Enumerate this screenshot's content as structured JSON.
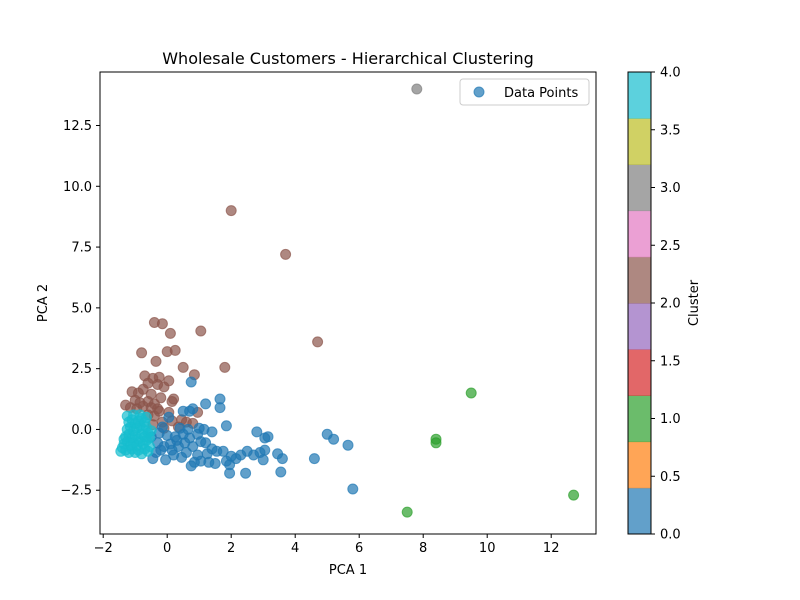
{
  "chart_data": {
    "type": "scatter",
    "title": "Wholesale Customers - Hierarchical Clustering",
    "xlabel": "PCA 1",
    "ylabel": "PCA 2",
    "xlim": [
      -2.1,
      13.4
    ],
    "ylim": [
      -4.3,
      14.7
    ],
    "xticks": [
      -2,
      0,
      2,
      4,
      6,
      8,
      10,
      12
    ],
    "xtick_labels": [
      "−2",
      "0",
      "2",
      "4",
      "6",
      "8",
      "10",
      "12"
    ],
    "yticks": [
      -2.5,
      0.0,
      2.5,
      5.0,
      7.5,
      10.0,
      12.5
    ],
    "ytick_labels": [
      "−2.5",
      "0.0",
      "2.5",
      "5.0",
      "7.5",
      "10.0",
      "12.5"
    ],
    "grid": false,
    "legend": {
      "label": "Data Points",
      "placement": "top-right"
    },
    "colorbar": {
      "label": "Cluster",
      "min": 0.0,
      "max": 4.0,
      "ticks": [
        0.0,
        0.5,
        1.0,
        1.5,
        2.0,
        2.5,
        3.0,
        3.5,
        4.0
      ],
      "tick_labels": [
        "0.0",
        "0.5",
        "1.0",
        "1.5",
        "2.0",
        "2.5",
        "3.0",
        "3.5",
        "4.0"
      ],
      "segment_colors": [
        "#1f77b4",
        "#ff7f0e",
        "#2ca02c",
        "#d62728",
        "#9467bd",
        "#8c564b",
        "#e377c2",
        "#7f7f7f",
        "#bcbd22",
        "#17becf"
      ]
    },
    "cluster_colors": {
      "0": "#1f77b4",
      "1": "#2ca02c",
      "2": "#8c564b",
      "3": "#7f7f7f",
      "4": "#17becf"
    },
    "series": [
      {
        "cluster": 3,
        "points": [
          [
            7.8,
            14.0
          ]
        ]
      },
      {
        "cluster": 1,
        "points": [
          [
            9.5,
            1.5
          ],
          [
            8.4,
            -0.4
          ],
          [
            8.4,
            -0.55
          ],
          [
            7.5,
            -3.4
          ],
          [
            12.7,
            -2.7
          ]
        ]
      },
      {
        "cluster": 2,
        "points": [
          [
            2.0,
            9.0
          ],
          [
            3.7,
            7.2
          ],
          [
            4.7,
            3.6
          ],
          [
            -0.4,
            4.4
          ],
          [
            -0.15,
            4.35
          ],
          [
            0.1,
            3.95
          ],
          [
            1.05,
            4.05
          ],
          [
            -0.8,
            3.15
          ],
          [
            0.0,
            3.2
          ],
          [
            0.25,
            3.25
          ],
          [
            -0.35,
            2.8
          ],
          [
            0.5,
            2.55
          ],
          [
            1.8,
            2.55
          ],
          [
            0.85,
            2.25
          ],
          [
            -0.7,
            2.2
          ],
          [
            -0.45,
            2.1
          ],
          [
            -0.25,
            2.15
          ],
          [
            0.05,
            2.0
          ],
          [
            -0.6,
            1.9
          ],
          [
            -0.3,
            1.85
          ],
          [
            -0.1,
            1.75
          ],
          [
            -1.1,
            1.55
          ],
          [
            -0.9,
            1.5
          ],
          [
            -0.75,
            1.65
          ],
          [
            -0.5,
            1.45
          ],
          [
            -0.2,
            1.3
          ],
          [
            0.2,
            1.25
          ],
          [
            0.15,
            1.15
          ],
          [
            -1.0,
            1.2
          ],
          [
            -0.85,
            1.1
          ],
          [
            -0.6,
            1.15
          ],
          [
            -0.4,
            1.05
          ],
          [
            -1.3,
            1.0
          ],
          [
            -1.15,
            0.9
          ],
          [
            -0.95,
            0.85
          ],
          [
            -0.75,
            0.95
          ],
          [
            -0.5,
            0.9
          ],
          [
            -0.3,
            0.85
          ],
          [
            -0.25,
            0.75
          ],
          [
            0.05,
            0.7
          ],
          [
            0.95,
            0.7
          ],
          [
            -0.6,
            0.6
          ],
          [
            -0.4,
            0.55
          ],
          [
            0.45,
            0.4
          ],
          [
            0.15,
            0.35
          ],
          [
            -0.15,
            0.3
          ],
          [
            0.35,
            0.1
          ],
          [
            0.8,
            0.25
          ],
          [
            -0.1,
            0.05
          ],
          [
            -0.45,
            0.2
          ],
          [
            0.6,
            0.3
          ]
        ]
      },
      {
        "cluster": 0,
        "points": [
          [
            0.75,
            1.95
          ],
          [
            1.65,
            1.25
          ],
          [
            1.65,
            0.9
          ],
          [
            1.2,
            1.05
          ],
          [
            0.8,
            0.85
          ],
          [
            0.5,
            0.75
          ],
          [
            0.7,
            0.75
          ],
          [
            1.85,
            0.15
          ],
          [
            2.8,
            -0.1
          ],
          [
            3.15,
            -0.3
          ],
          [
            3.05,
            -0.35
          ],
          [
            5.0,
            -0.2
          ],
          [
            5.2,
            -0.4
          ],
          [
            5.65,
            -0.65
          ],
          [
            4.6,
            -1.2
          ],
          [
            5.8,
            -2.45
          ],
          [
            3.55,
            -1.75
          ],
          [
            3.6,
            -1.2
          ],
          [
            3.45,
            -1.0
          ],
          [
            3.0,
            -1.25
          ],
          [
            2.9,
            -0.95
          ],
          [
            3.05,
            -0.85
          ],
          [
            2.7,
            -1.05
          ],
          [
            2.5,
            -0.9
          ],
          [
            2.3,
            -1.05
          ],
          [
            2.15,
            -1.2
          ],
          [
            2.0,
            -1.1
          ],
          [
            1.95,
            -1.45
          ],
          [
            1.95,
            -1.8
          ],
          [
            2.45,
            -1.8
          ],
          [
            1.85,
            -1.3
          ],
          [
            1.75,
            -0.9
          ],
          [
            1.55,
            -0.9
          ],
          [
            1.5,
            -1.4
          ],
          [
            1.3,
            -1.35
          ],
          [
            1.4,
            -0.8
          ],
          [
            1.2,
            -0.55
          ],
          [
            1.05,
            -1.3
          ],
          [
            0.95,
            -1.05
          ],
          [
            0.85,
            -1.35
          ],
          [
            0.75,
            -1.5
          ],
          [
            0.8,
            -0.7
          ],
          [
            0.6,
            -0.95
          ],
          [
            0.45,
            -1.15
          ],
          [
            0.35,
            -0.7
          ],
          [
            0.2,
            -1.05
          ],
          [
            0.1,
            -0.6
          ],
          [
            -0.05,
            -1.25
          ],
          [
            -0.2,
            -0.85
          ],
          [
            -0.45,
            -1.2
          ],
          [
            -0.3,
            -0.55
          ],
          [
            -0.5,
            -0.3
          ],
          [
            -0.25,
            -0.15
          ],
          [
            0.0,
            -0.25
          ],
          [
            0.25,
            -0.3
          ],
          [
            0.5,
            -0.2
          ],
          [
            0.7,
            -0.35
          ],
          [
            0.95,
            -0.2
          ],
          [
            1.15,
            0.0
          ],
          [
            1.0,
            0.05
          ],
          [
            1.4,
            -0.1
          ],
          [
            1.05,
            -0.5
          ],
          [
            0.55,
            -0.55
          ],
          [
            0.3,
            -0.45
          ],
          [
            -0.1,
            -0.7
          ],
          [
            -0.35,
            -0.95
          ],
          [
            0.15,
            -0.85
          ],
          [
            1.25,
            -1.0
          ],
          [
            0.65,
            0.0
          ],
          [
            0.4,
            0.05
          ],
          [
            0.05,
            0.5
          ],
          [
            -0.15,
            0.1
          ]
        ]
      },
      {
        "cluster": 4,
        "points": [
          [
            -1.45,
            -0.9
          ],
          [
            -1.3,
            -0.85
          ],
          [
            -1.2,
            -0.95
          ],
          [
            -1.1,
            -0.8
          ],
          [
            -1.0,
            -0.95
          ],
          [
            -0.9,
            -0.85
          ],
          [
            -0.8,
            -1.0
          ],
          [
            -0.7,
            -0.8
          ],
          [
            -0.6,
            -0.9
          ],
          [
            -1.35,
            -0.6
          ],
          [
            -1.25,
            -0.5
          ],
          [
            -1.15,
            -0.65
          ],
          [
            -1.05,
            -0.55
          ],
          [
            -0.95,
            -0.65
          ],
          [
            -0.85,
            -0.5
          ],
          [
            -0.75,
            -0.6
          ],
          [
            -0.65,
            -0.45
          ],
          [
            -0.55,
            -0.7
          ],
          [
            -1.3,
            -0.3
          ],
          [
            -1.2,
            -0.2
          ],
          [
            -1.1,
            -0.35
          ],
          [
            -1.0,
            -0.25
          ],
          [
            -0.9,
            -0.4
          ],
          [
            -0.8,
            -0.2
          ],
          [
            -0.7,
            -0.3
          ],
          [
            -0.6,
            -0.15
          ],
          [
            -1.25,
            0.0
          ],
          [
            -1.15,
            0.1
          ],
          [
            -1.05,
            -0.05
          ],
          [
            -0.95,
            0.05
          ],
          [
            -0.85,
            0.15
          ],
          [
            -0.75,
            0.0
          ],
          [
            -0.65,
            0.1
          ],
          [
            -1.2,
            0.3
          ],
          [
            -1.1,
            0.4
          ],
          [
            -1.0,
            0.25
          ],
          [
            -0.9,
            0.35
          ],
          [
            -0.8,
            0.45
          ],
          [
            -0.7,
            0.3
          ],
          [
            -1.25,
            0.55
          ],
          [
            -1.05,
            0.6
          ],
          [
            -0.85,
            0.6
          ],
          [
            -0.65,
            0.5
          ],
          [
            -1.4,
            -0.75
          ],
          [
            -1.35,
            -0.4
          ],
          [
            -0.55,
            -0.35
          ],
          [
            -0.5,
            -0.05
          ]
        ]
      }
    ]
  }
}
